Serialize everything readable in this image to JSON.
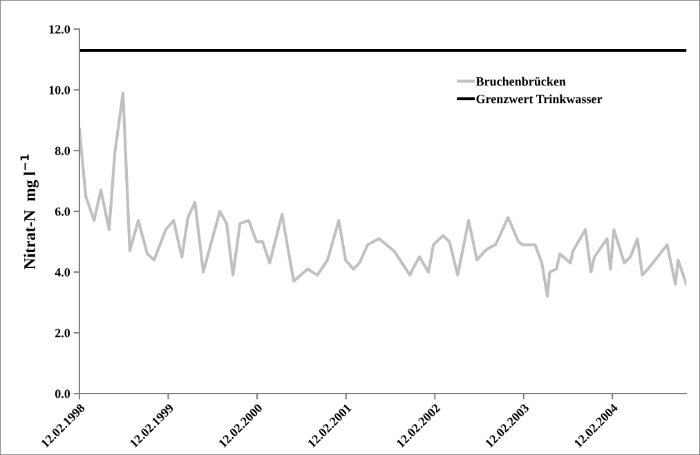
{
  "chart_data": {
    "type": "line",
    "ylabel": "Nitrat-N  mg l$^{−1}$",
    "x": [
      "1998-02-12",
      "1998-03-10",
      "1998-04-13",
      "1998-05-11",
      "1998-06-14",
      "1998-07-07",
      "1998-08-10",
      "1998-09-07",
      "1998-10-12",
      "1998-11-18",
      "1998-12-16",
      "1999-02-02",
      "1999-03-06",
      "1999-04-09",
      "1999-05-04",
      "1999-06-02",
      "1999-07-06",
      "1999-09-12",
      "1999-10-10",
      "1999-11-05",
      "1999-12-04",
      "2000-01-09",
      "2000-02-10",
      "2000-03-06",
      "2000-04-04",
      "2000-05-25",
      "2000-06-22",
      "2000-07-12",
      "2000-09-07",
      "2000-10-17",
      "2000-11-28",
      "2001-01-13",
      "2001-02-10",
      "2001-03-14",
      "2001-04-08",
      "2001-05-12",
      "2001-06-27",
      "2001-08-28",
      "2001-11-02",
      "2001-11-13",
      "2001-12-11",
      "2002-01-17",
      "2002-02-06",
      "2002-03-18",
      "2002-04-13",
      "2002-05-17",
      "2002-07-01",
      "2002-08-04",
      "2002-09-07",
      "2002-09-24",
      "2002-10-20",
      "2002-12-10",
      "2003-01-22",
      "2003-02-08",
      "2003-03-31",
      "2003-04-28",
      "2003-05-21",
      "2003-05-30",
      "2003-06-27",
      "2003-07-11",
      "2003-08-23",
      "2003-09-03",
      "2003-10-24",
      "2003-11-16",
      "2003-11-30",
      "2004-01-21",
      "2004-02-04",
      "2004-02-18",
      "2004-04-01",
      "2004-04-26",
      "2004-05-25",
      "2004-06-14",
      "2004-07-07",
      "2004-08-06",
      "2004-09-24",
      "2004-10-28",
      "2004-11-08",
      "2004-12-12"
    ],
    "series": [
      {
        "name": "Bruchenbrücken",
        "color": "#c0c0c0",
        "values": [
          8.7,
          6.5,
          5.7,
          6.7,
          5.4,
          7.9,
          9.9,
          4.7,
          5.7,
          4.6,
          4.4,
          5.4,
          5.7,
          4.5,
          5.8,
          6.3,
          4.0,
          6.0,
          5.6,
          3.9,
          5.6,
          5.7,
          5.0,
          5.0,
          4.3,
          5.9,
          4.6,
          3.7,
          4.1,
          3.9,
          4.4,
          5.7,
          4.4,
          4.1,
          4.3,
          4.9,
          5.1,
          4.7,
          3.9,
          4.1,
          4.5,
          4.0,
          4.9,
          5.2,
          5.0,
          3.9,
          5.7,
          4.4,
          4.7,
          4.8,
          4.9,
          5.8,
          5.0,
          4.9,
          4.9,
          4.3,
          3.2,
          4.0,
          4.1,
          4.6,
          4.3,
          4.7,
          5.4,
          4.0,
          4.5,
          5.1,
          4.1,
          5.4,
          4.3,
          4.5,
          5.1,
          3.9,
          4.1,
          4.4,
          4.9,
          3.6,
          4.4,
          3.6
        ]
      }
    ],
    "ref_lines": [
      {
        "axis": "y",
        "value": 11.3,
        "label": "Grenzwert Trinkwasser",
        "color": "#000000",
        "line_style": "solid"
      }
    ],
    "xlim": [
      "1998-02-12",
      "2004-12-12"
    ],
    "xticks": [
      {
        "value": "1998-02-12",
        "label": "12.02.1998"
      },
      {
        "value": "1999-02-12",
        "label": "12.02.1999"
      },
      {
        "value": "2000-02-12",
        "label": "12.02.2000"
      },
      {
        "value": "2001-02-12",
        "label": "12.02.2001"
      },
      {
        "value": "2002-02-12",
        "label": "12.02.2002"
      },
      {
        "value": "2003-02-12",
        "label": "12.02.2003"
      },
      {
        "value": "2004-02-12",
        "label": "12.02.2004"
      }
    ],
    "ylim": [
      0,
      12
    ],
    "yticks": [
      {
        "value": 0,
        "label": "0.0"
      },
      {
        "value": 2,
        "label": "2.0"
      },
      {
        "value": 4,
        "label": "4.0"
      },
      {
        "value": 6,
        "label": "6.0"
      },
      {
        "value": 8,
        "label": "8.0"
      },
      {
        "value": 10,
        "label": "10.0"
      },
      {
        "value": 12,
        "label": "12.0"
      }
    ],
    "grid": false,
    "legend": "top right",
    "marker": "none",
    "line_style": "solid"
  }
}
